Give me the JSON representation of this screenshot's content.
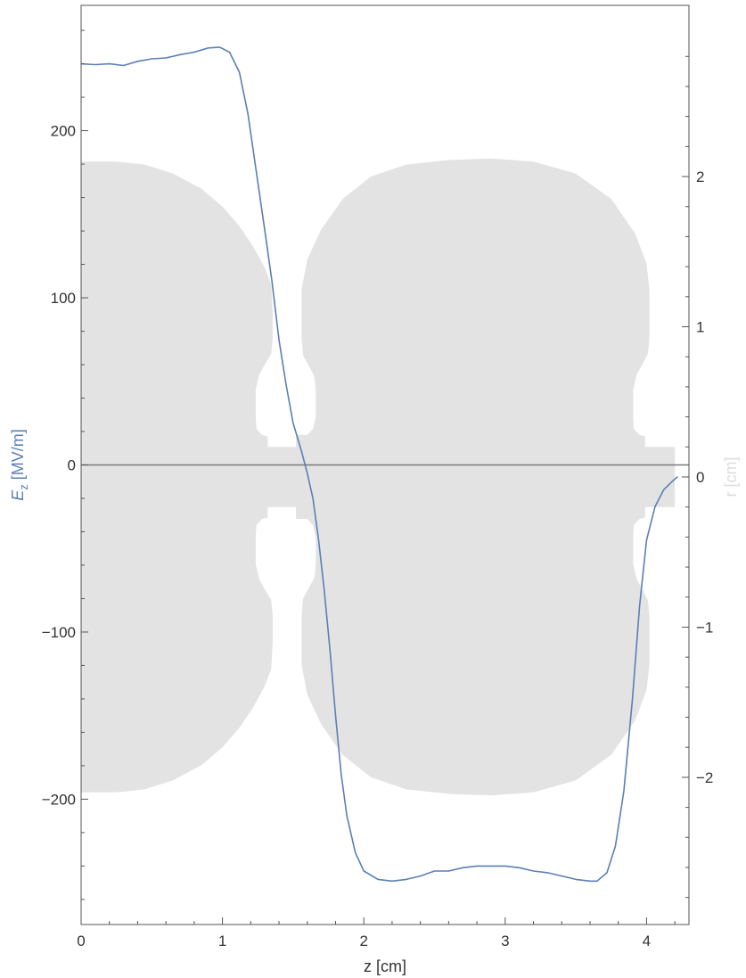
{
  "chart_data": {
    "type": "line",
    "title": "",
    "xlabel": "z [cm]",
    "ylabel_left": "E_z [MV/m]",
    "ylabel_left_parts": {
      "symbol": "E",
      "subscript": "z",
      "unit": " [MV/m]"
    },
    "ylabel_right": "r [cm]",
    "xlim": [
      0,
      4.3
    ],
    "ylim_left": [
      -275,
      275
    ],
    "ylim_right": [
      -2.98,
      3.14
    ],
    "x_ticks": [
      {
        "value": 0,
        "label": "0"
      },
      {
        "value": 1,
        "label": "1"
      },
      {
        "value": 2,
        "label": "2"
      },
      {
        "value": 3,
        "label": "3"
      },
      {
        "value": 4,
        "label": "4"
      }
    ],
    "y_left_ticks": [
      {
        "value": 200,
        "label": "200"
      },
      {
        "value": 100,
        "label": "100"
      },
      {
        "value": 0,
        "label": "0"
      },
      {
        "value": -100,
        "label": "−100"
      },
      {
        "value": -200,
        "label": "−200"
      }
    ],
    "y_right_ticks": [
      {
        "value": 2,
        "label": "2"
      },
      {
        "value": 1,
        "label": "1"
      },
      {
        "value": 0,
        "label": "0"
      },
      {
        "value": -1,
        "label": "−1"
      },
      {
        "value": -2,
        "label": "−2"
      }
    ],
    "series": [
      {
        "axis": "left",
        "color": "#5b7fb5",
        "points": [
          [
            0.0,
            240
          ],
          [
            0.1,
            239.5
          ],
          [
            0.2,
            240
          ],
          [
            0.3,
            239
          ],
          [
            0.4,
            241.5
          ],
          [
            0.5,
            243
          ],
          [
            0.6,
            243.5
          ],
          [
            0.7,
            245.5
          ],
          [
            0.8,
            247
          ],
          [
            0.9,
            249.5
          ],
          [
            0.98,
            250
          ],
          [
            1.05,
            247
          ],
          [
            1.12,
            235
          ],
          [
            1.18,
            210
          ],
          [
            1.24,
            175
          ],
          [
            1.3,
            140
          ],
          [
            1.35,
            110
          ],
          [
            1.4,
            75
          ],
          [
            1.45,
            48
          ],
          [
            1.5,
            25
          ],
          [
            1.56,
            8
          ],
          [
            1.6,
            -5
          ],
          [
            1.64,
            -20
          ],
          [
            1.68,
            -45
          ],
          [
            1.72,
            -75
          ],
          [
            1.76,
            -110
          ],
          [
            1.8,
            -150
          ],
          [
            1.84,
            -185
          ],
          [
            1.88,
            -210
          ],
          [
            1.94,
            -232
          ],
          [
            2.0,
            -243
          ],
          [
            2.1,
            -248
          ],
          [
            2.2,
            -249
          ],
          [
            2.3,
            -248
          ],
          [
            2.4,
            -246
          ],
          [
            2.5,
            -243
          ],
          [
            2.6,
            -243
          ],
          [
            2.7,
            -241
          ],
          [
            2.8,
            -240
          ],
          [
            2.9,
            -240
          ],
          [
            3.0,
            -240
          ],
          [
            3.1,
            -241
          ],
          [
            3.2,
            -243
          ],
          [
            3.3,
            -244
          ],
          [
            3.4,
            -246
          ],
          [
            3.5,
            -248
          ],
          [
            3.6,
            -249
          ],
          [
            3.65,
            -249
          ],
          [
            3.72,
            -244
          ],
          [
            3.78,
            -228
          ],
          [
            3.84,
            -195
          ],
          [
            3.9,
            -140
          ],
          [
            3.95,
            -85
          ],
          [
            4.0,
            -45
          ],
          [
            4.06,
            -25
          ],
          [
            4.12,
            -15
          ],
          [
            4.18,
            -10
          ],
          [
            4.22,
            -7
          ]
        ]
      }
    ],
    "background_shape": {
      "description": "cavity cross-section outline",
      "color": "#e3e3e3",
      "upper_outline": [
        [
          0.0,
          2.1
        ],
        [
          0.25,
          2.1
        ],
        [
          0.45,
          2.08
        ],
        [
          0.65,
          2.02
        ],
        [
          0.85,
          1.92
        ],
        [
          1.0,
          1.8
        ],
        [
          1.12,
          1.67
        ],
        [
          1.22,
          1.53
        ],
        [
          1.3,
          1.39
        ],
        [
          1.345,
          1.28
        ],
        [
          1.355,
          1.1
        ],
        [
          1.355,
          0.92
        ],
        [
          1.345,
          0.82
        ],
        [
          1.3,
          0.75
        ],
        [
          1.26,
          0.68
        ],
        [
          1.235,
          0.58
        ],
        [
          1.235,
          0.4
        ],
        [
          1.24,
          0.32
        ],
        [
          1.28,
          0.28
        ],
        [
          1.32,
          0.27
        ],
        [
          1.32,
          0.2
        ],
        [
          1.52,
          0.2
        ],
        [
          1.52,
          0.28
        ],
        [
          1.6,
          0.28
        ],
        [
          1.64,
          0.32
        ],
        [
          1.66,
          0.4
        ],
        [
          1.66,
          0.58
        ],
        [
          1.65,
          0.67
        ],
        [
          1.61,
          0.74
        ],
        [
          1.57,
          0.81
        ],
        [
          1.56,
          0.92
        ],
        [
          1.56,
          1.25
        ],
        [
          1.6,
          1.45
        ],
        [
          1.7,
          1.65
        ],
        [
          1.85,
          1.85
        ],
        [
          2.05,
          2.0
        ],
        [
          2.3,
          2.08
        ],
        [
          2.6,
          2.11
        ],
        [
          2.9,
          2.12
        ],
        [
          3.2,
          2.1
        ],
        [
          3.5,
          2.02
        ],
        [
          3.75,
          1.85
        ],
        [
          3.92,
          1.62
        ],
        [
          4.0,
          1.42
        ],
        [
          4.02,
          1.25
        ],
        [
          4.02,
          0.92
        ],
        [
          4.01,
          0.82
        ],
        [
          3.97,
          0.75
        ],
        [
          3.93,
          0.68
        ],
        [
          3.905,
          0.58
        ],
        [
          3.905,
          0.4
        ],
        [
          3.91,
          0.32
        ],
        [
          3.95,
          0.28
        ],
        [
          3.99,
          0.27
        ],
        [
          3.99,
          0.2
        ],
        [
          4.2,
          0.2
        ]
      ]
    },
    "grid": false,
    "legend": "none"
  }
}
